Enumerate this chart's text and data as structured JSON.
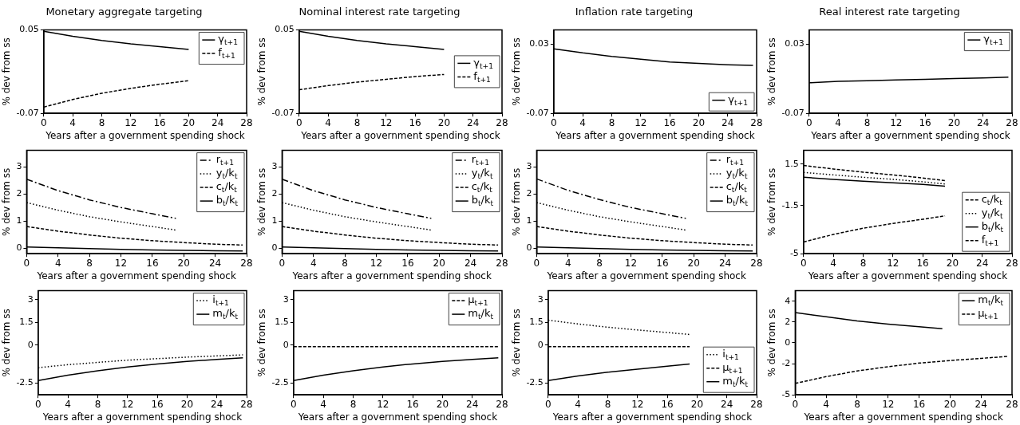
{
  "chart_data": [
    {
      "type": "line",
      "title": "Monetary aggregate targeting",
      "xlabel": "Years after a government spending shock",
      "ylabel": "% dev from ss",
      "xlim": [
        0,
        28
      ],
      "xticks": [
        0,
        4,
        8,
        12,
        16,
        20,
        24,
        28
      ],
      "ylim": [
        -0.07,
        0.05
      ],
      "yticks": [
        -0.07,
        0.05
      ],
      "legend": "top right",
      "series": [
        {
          "name": "γ$_{t+1}$",
          "color": "#000000",
          "line_style": "solid",
          "x": [
            0,
            4,
            8,
            12,
            16,
            20
          ],
          "values": [
            0.048,
            0.041,
            0.035,
            0.03,
            0.026,
            0.022
          ]
        },
        {
          "name": "f$_{t+1}$",
          "color": "#000000",
          "line_style": "dashed",
          "x": [
            0,
            4,
            8,
            12,
            16,
            20
          ],
          "values": [
            -0.061,
            -0.05,
            -0.041,
            -0.034,
            -0.028,
            -0.023
          ]
        }
      ]
    },
    {
      "type": "line",
      "title": "Nominal interest rate targeting",
      "xlabel": "Years after a government spending shock",
      "ylabel": "% dev from ss",
      "xlim": [
        0,
        28
      ],
      "xticks": [
        0,
        4,
        8,
        12,
        16,
        20,
        24,
        28
      ],
      "ylim": [
        -0.07,
        0.05
      ],
      "yticks": [
        -0.07,
        0.05
      ],
      "legend": "right",
      "series": [
        {
          "name": "γ$_{t+1}$",
          "color": "#000000",
          "line_style": "solid",
          "x": [
            0,
            4,
            8,
            12,
            16,
            20
          ],
          "values": [
            0.048,
            0.041,
            0.035,
            0.03,
            0.026,
            0.022
          ]
        },
        {
          "name": "f$_{t+1}$",
          "color": "#000000",
          "line_style": "dashed",
          "x": [
            0,
            4,
            8,
            12,
            16,
            20
          ],
          "values": [
            -0.036,
            -0.03,
            -0.025,
            -0.021,
            -0.017,
            -0.014
          ]
        }
      ]
    },
    {
      "type": "line",
      "title": "Inflation rate targeting",
      "xlabel": "Years after a government spending shock",
      "ylabel": "% dev from ss",
      "xlim": [
        0,
        28
      ],
      "xticks": [
        0,
        4,
        8,
        12,
        16,
        20,
        24,
        28
      ],
      "ylim": [
        -0.07,
        0.05
      ],
      "yticks": [
        -0.07,
        0.03
      ],
      "legend": "bottom right",
      "series": [
        {
          "name": "γ$_{t+1}$",
          "color": "#000000",
          "line_style": "solid",
          "x": [
            0,
            4,
            8,
            12,
            16,
            20,
            24,
            27.5
          ],
          "values": [
            0.023,
            0.017,
            0.012,
            0.008,
            0.004,
            0.002,
            0.0,
            -0.001
          ]
        }
      ]
    },
    {
      "type": "line",
      "title": "Real interest rate targeting",
      "xlabel": "Years after a government spending shock",
      "ylabel": "% dev from ss",
      "xlim": [
        0,
        28
      ],
      "xticks": [
        0,
        4,
        8,
        12,
        16,
        20,
        24,
        28
      ],
      "ylim": [
        -0.07,
        0.05
      ],
      "yticks": [
        -0.07,
        0.03
      ],
      "legend": "top right",
      "series": [
        {
          "name": "γ$_{t+1}$",
          "color": "#000000",
          "line_style": "solid",
          "x": [
            0,
            4,
            8,
            12,
            16,
            20,
            24,
            27.5
          ],
          "values": [
            -0.026,
            -0.024,
            -0.023,
            -0.022,
            -0.021,
            -0.02,
            -0.019,
            -0.018
          ]
        }
      ]
    },
    {
      "type": "line",
      "xlabel": "Years after a government spending shock",
      "ylabel": "% dev from ss",
      "xlim": [
        0,
        28
      ],
      "xticks": [
        0,
        4,
        8,
        12,
        16,
        20,
        24,
        28
      ],
      "ylim": [
        -0.2,
        3.6
      ],
      "yticks": [
        0,
        1,
        2,
        3
      ],
      "legend": "top right",
      "series": [
        {
          "name": "r$_{t+1}$",
          "color": "#000000",
          "line_style": "dashdot",
          "x": [
            0,
            4,
            8,
            12,
            16,
            19
          ],
          "values": [
            2.54,
            2.12,
            1.78,
            1.5,
            1.27,
            1.1
          ]
        },
        {
          "name": "y$_{t}$/k$_{t}$",
          "color": "#000000",
          "line_style": "dotted",
          "x": [
            0,
            4,
            8,
            12,
            16,
            19
          ],
          "values": [
            1.68,
            1.4,
            1.16,
            0.97,
            0.8,
            0.67
          ]
        },
        {
          "name": "c$_{t}$/k$_{t}$",
          "color": "#000000",
          "line_style": "dashed",
          "x": [
            0,
            4,
            8,
            12,
            16,
            20,
            24,
            27.5
          ],
          "values": [
            0.8,
            0.63,
            0.49,
            0.37,
            0.28,
            0.21,
            0.15,
            0.12
          ]
        },
        {
          "name": "b$_{t}$/k$_{t}$",
          "color": "#000000",
          "line_style": "solid",
          "x": [
            0,
            4,
            8,
            12,
            16,
            20,
            24,
            27.5
          ],
          "values": [
            0.05,
            0.02,
            -0.01,
            -0.04,
            -0.06,
            -0.08,
            -0.09,
            -0.1
          ]
        }
      ]
    },
    {
      "type": "line",
      "xlabel": "Years after a government spending shock",
      "ylabel": "% dev from ss",
      "xlim": [
        0,
        28
      ],
      "xticks": [
        0,
        4,
        8,
        12,
        16,
        20,
        24,
        28
      ],
      "ylim": [
        -0.2,
        3.6
      ],
      "yticks": [
        0,
        1,
        2,
        3
      ],
      "legend": "top right",
      "series": [
        {
          "name": "r$_{t+1}$",
          "color": "#000000",
          "line_style": "dashdot",
          "x": [
            0,
            4,
            8,
            12,
            16,
            19
          ],
          "values": [
            2.54,
            2.12,
            1.78,
            1.5,
            1.27,
            1.1
          ]
        },
        {
          "name": "y$_{t}$/k$_{t}$",
          "color": "#000000",
          "line_style": "dotted",
          "x": [
            0,
            4,
            8,
            12,
            16,
            19
          ],
          "values": [
            1.68,
            1.4,
            1.16,
            0.97,
            0.8,
            0.67
          ]
        },
        {
          "name": "c$_{t}$/k$_{t}$",
          "color": "#000000",
          "line_style": "dashed",
          "x": [
            0,
            4,
            8,
            12,
            16,
            20,
            24,
            27.5
          ],
          "values": [
            0.8,
            0.63,
            0.49,
            0.37,
            0.28,
            0.21,
            0.15,
            0.12
          ]
        },
        {
          "name": "b$_{t}$/k$_{t}$",
          "color": "#000000",
          "line_style": "solid",
          "x": [
            0,
            4,
            8,
            12,
            16,
            20,
            24,
            27.5
          ],
          "values": [
            0.05,
            0.02,
            -0.01,
            -0.04,
            -0.06,
            -0.08,
            -0.09,
            -0.1
          ]
        }
      ]
    },
    {
      "type": "line",
      "xlabel": "Years after a government spending shock",
      "ylabel": "% dev from ss",
      "xlim": [
        0,
        28
      ],
      "xticks": [
        0,
        4,
        8,
        12,
        16,
        20,
        24,
        28
      ],
      "ylim": [
        -0.2,
        3.6
      ],
      "yticks": [
        0,
        1,
        2,
        3
      ],
      "legend": "top right",
      "series": [
        {
          "name": "r$_{t+1}$",
          "color": "#000000",
          "line_style": "dashdot",
          "x": [
            0,
            4,
            8,
            12,
            16,
            19
          ],
          "values": [
            2.55,
            2.13,
            1.79,
            1.5,
            1.27,
            1.1
          ]
        },
        {
          "name": "y$_{t}$/k$_{t}$",
          "color": "#000000",
          "line_style": "dotted",
          "x": [
            0,
            4,
            8,
            12,
            16,
            19
          ],
          "values": [
            1.68,
            1.4,
            1.16,
            0.97,
            0.8,
            0.67
          ]
        },
        {
          "name": "c$_{t}$/k$_{t}$",
          "color": "#000000",
          "line_style": "dashed",
          "x": [
            0,
            4,
            8,
            12,
            16,
            20,
            24,
            27.5
          ],
          "values": [
            0.8,
            0.63,
            0.49,
            0.37,
            0.28,
            0.21,
            0.15,
            0.12
          ]
        },
        {
          "name": "b$_{t}$/k$_{t}$",
          "color": "#000000",
          "line_style": "solid",
          "x": [
            0,
            4,
            8,
            12,
            16,
            20,
            24,
            27.5
          ],
          "values": [
            0.05,
            0.02,
            -0.01,
            -0.04,
            -0.06,
            -0.08,
            -0.09,
            -0.1
          ]
        }
      ]
    },
    {
      "type": "line",
      "xlabel": "Years after a government spending shock",
      "ylabel": "% dev from ss",
      "xlim": [
        0,
        28
      ],
      "xticks": [
        0,
        4,
        8,
        12,
        16,
        20,
        24,
        28
      ],
      "ylim": [
        -5,
        2.5
      ],
      "yticks": [
        -5,
        -1.5,
        1.5
      ],
      "legend": "bottom right",
      "series": [
        {
          "name": "c$_{t}$/k$_{t}$",
          "color": "#000000",
          "line_style": "dashed",
          "x": [
            0,
            4,
            8,
            12,
            16,
            19
          ],
          "values": [
            1.4,
            1.15,
            0.92,
            0.72,
            0.5,
            0.3
          ]
        },
        {
          "name": "y$_{t}$/k$_{t}$",
          "color": "#000000",
          "line_style": "dotted",
          "x": [
            0,
            4,
            8,
            12,
            16,
            19
          ],
          "values": [
            0.9,
            0.72,
            0.55,
            0.4,
            0.22,
            0.06
          ]
        },
        {
          "name": "b$_{t}$/k$_{t}$",
          "color": "#000000",
          "line_style": "solid",
          "x": [
            0,
            4,
            8,
            12,
            16,
            19
          ],
          "values": [
            0.55,
            0.4,
            0.27,
            0.15,
            0.03,
            -0.1
          ]
        },
        {
          "name": "f$_{t+1}$",
          "color": "#000000",
          "line_style": "dashed",
          "x": [
            0,
            4,
            8,
            12,
            16,
            19
          ],
          "values": [
            -4.15,
            -3.6,
            -3.15,
            -2.8,
            -2.5,
            -2.25
          ]
        }
      ]
    },
    {
      "type": "line",
      "xlabel": "Years after a government spending shock",
      "ylabel": "% dev from ss",
      "xlim": [
        0,
        28
      ],
      "xticks": [
        0,
        4,
        8,
        12,
        16,
        20,
        24,
        28
      ],
      "ylim": [
        -3.3,
        3.6
      ],
      "yticks": [
        -2.5,
        0,
        1.5,
        3
      ],
      "legend": "top right",
      "series": [
        {
          "name": "i$_{t+1}$",
          "color": "#000000",
          "line_style": "dotted",
          "x": [
            0,
            4,
            8,
            12,
            16,
            20,
            24,
            27.5
          ],
          "values": [
            -1.5,
            -1.3,
            -1.15,
            -1.0,
            -0.9,
            -0.8,
            -0.72,
            -0.65
          ]
        },
        {
          "name": "m$_{t}$/k$_{t}$",
          "color": "#000000",
          "line_style": "solid",
          "x": [
            0,
            4,
            8,
            12,
            16,
            20,
            24,
            27.5
          ],
          "values": [
            -2.35,
            -2.0,
            -1.7,
            -1.45,
            -1.25,
            -1.08,
            -0.95,
            -0.85
          ]
        }
      ]
    },
    {
      "type": "line",
      "xlabel": "Years after a government spending shock",
      "ylabel": "% dev from ss",
      "xlim": [
        0,
        28
      ],
      "xticks": [
        0,
        4,
        8,
        12,
        16,
        20,
        24,
        28
      ],
      "ylim": [
        -3.3,
        3.6
      ],
      "yticks": [
        -2.5,
        0,
        1.5,
        3
      ],
      "legend": "top right",
      "series": [
        {
          "name": "μ$_{t+1}$",
          "color": "#000000",
          "line_style": "dashed",
          "x": [
            0,
            27.5
          ],
          "values": [
            -0.1,
            -0.1
          ]
        },
        {
          "name": "m$_{t}$/k$_{t}$",
          "color": "#000000",
          "line_style": "solid",
          "x": [
            0,
            4,
            8,
            12,
            16,
            20,
            24,
            27.5
          ],
          "values": [
            -2.35,
            -2.0,
            -1.7,
            -1.45,
            -1.25,
            -1.08,
            -0.95,
            -0.85
          ]
        }
      ]
    },
    {
      "type": "line",
      "xlabel": "Years after a government spending shock",
      "ylabel": "% dev from ss",
      "xlim": [
        0,
        28
      ],
      "xticks": [
        0,
        4,
        8,
        12,
        16,
        20,
        24,
        28
      ],
      "ylim": [
        -3.3,
        3.6
      ],
      "yticks": [
        -2.5,
        0,
        1.5,
        3
      ],
      "legend": "bottom right",
      "series": [
        {
          "name": "i$_{t+1}$",
          "color": "#000000",
          "line_style": "dotted",
          "x": [
            0,
            4,
            8,
            12,
            16,
            19
          ],
          "values": [
            1.65,
            1.4,
            1.18,
            1.0,
            0.83,
            0.7
          ]
        },
        {
          "name": "μ$_{t+1}$",
          "color": "#000000",
          "line_style": "dashed",
          "x": [
            0,
            19
          ],
          "values": [
            -0.1,
            -0.1
          ]
        },
        {
          "name": "m$_{t}$/k$_{t}$",
          "color": "#000000",
          "line_style": "solid",
          "x": [
            0,
            4,
            8,
            12,
            16,
            19
          ],
          "values": [
            -2.35,
            -2.05,
            -1.8,
            -1.6,
            -1.4,
            -1.25
          ]
        }
      ]
    },
    {
      "type": "line",
      "xlabel": "Years after a government spending shock",
      "ylabel": "% dev from ss",
      "xlim": [
        0,
        28
      ],
      "xticks": [
        0,
        4,
        8,
        12,
        16,
        20,
        24,
        28
      ],
      "ylim": [
        -5,
        5
      ],
      "yticks": [
        -5,
        -2,
        0,
        2,
        4
      ],
      "legend": "top right",
      "series": [
        {
          "name": "m$_{t}$/k$_{t}$",
          "color": "#000000",
          "line_style": "solid",
          "x": [
            0,
            4,
            8,
            12,
            16,
            19
          ],
          "values": [
            2.9,
            2.5,
            2.1,
            1.8,
            1.55,
            1.35
          ]
        },
        {
          "name": "μ$_{t+1}$",
          "color": "#000000",
          "line_style": "dashed",
          "x": [
            0,
            4,
            8,
            12,
            16,
            20,
            24,
            27.5
          ],
          "values": [
            -3.9,
            -3.25,
            -2.7,
            -2.3,
            -1.95,
            -1.7,
            -1.5,
            -1.3
          ]
        }
      ]
    }
  ]
}
